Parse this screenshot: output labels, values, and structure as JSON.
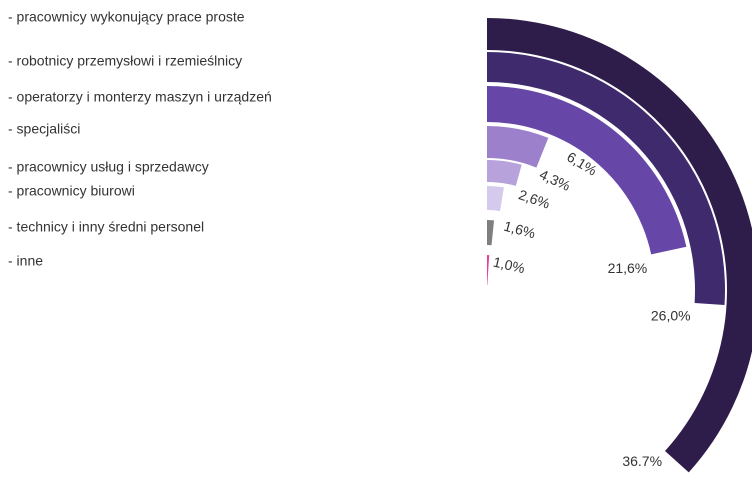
{
  "chart_data": {
    "type": "radial_bar",
    "categories": [
      "- pracownicy wykonujący  prace proste",
      "- robotnicy przemysłowi i rzemieślnicy",
      "- operatorzy i monterzy maszyn i urządzeń",
      "- specjaliści",
      "- pracownicy usług i sprzedawcy",
      "- pracownicy biurowi",
      "- technicy i inny średni personel",
      "- inne"
    ],
    "values": [
      36.7,
      26.0,
      21.6,
      6.1,
      4.3,
      2.6,
      1.6,
      1.0
    ],
    "value_labels": [
      "36.7%",
      "26,0%",
      "21,6%",
      "6,1%",
      "4,3%",
      "2,6%",
      "1,6%",
      "1,0%"
    ],
    "colors": [
      "#2e1c4a",
      "#3e2a6c",
      "#6646a6",
      "#9d80cb",
      "#b7a2dc",
      "#d6caec",
      "#7f7f7f",
      "#e0409e"
    ]
  }
}
